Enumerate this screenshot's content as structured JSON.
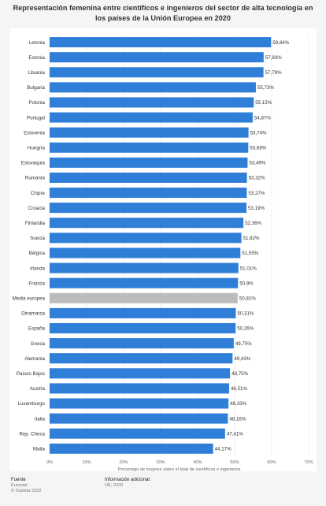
{
  "chart_data": {
    "type": "bar",
    "orientation": "horizontal",
    "title": "Representación femenina entre científicos e ingenieros del sector de alta tecnología en los países de la Unión Europea en 2020",
    "xlabel": "Porcentaje de mujeres sobre el total de científicos e ingenieros",
    "ylabel": "",
    "xlim": [
      0,
      70
    ],
    "ticks": [
      "0%",
      "10%",
      "20%",
      "30%",
      "40%",
      "50%",
      "60%",
      "70%"
    ],
    "grid": true,
    "legend": "none",
    "categories": [
      "Letonia",
      "Estonia",
      "Lituania",
      "Bulgaria",
      "Polonia",
      "Portugal",
      "Eslovenia",
      "Hungría",
      "Eslovaquia",
      "Rumanía",
      "Chipre",
      "Croacia",
      "Finlandia",
      "Suecia",
      "Bélgica",
      "Irlanda",
      "Francia",
      "Media europea",
      "Dinamarca",
      "España",
      "Grecia",
      "Alemania",
      "Países Bajos",
      "Austria",
      "Luxemburgo",
      "Italia",
      "Rep. Checa",
      "Malta"
    ],
    "values": [
      59.84,
      57.83,
      57.79,
      55.73,
      55.15,
      54.87,
      53.74,
      53.68,
      53.49,
      53.32,
      53.27,
      53.19,
      52.36,
      51.82,
      51.55,
      51.01,
      50.9,
      50.81,
      50.31,
      50.26,
      49.75,
      49.43,
      48.75,
      48.51,
      48.33,
      48.16,
      47.41,
      44.17
    ],
    "labels": [
      "59,84%",
      "57,83%",
      "57,79%",
      "55,73%",
      "55,15%",
      "54,87%",
      "53,74%",
      "53,68%",
      "53,49%",
      "53,32%",
      "53,27%",
      "53,19%",
      "52,36%",
      "51,82%",
      "51,55%",
      "51,01%",
      "50,9%",
      "50,81%",
      "50,31%",
      "50,26%",
      "49,75%",
      "49,43%",
      "48,75%",
      "48,51%",
      "48,33%",
      "48,16%",
      "47,41%",
      "44,17%"
    ],
    "highlight_index": 17,
    "colors": {
      "bar": "#2f7ed8",
      "highlight": "#bcbcbc",
      "grid": "#e6e6e6"
    }
  },
  "footer": {
    "source_heading": "Fuente",
    "source": "Eurostat",
    "copyright": "© Statista 2022",
    "info_heading": "Información adicional:",
    "info": "UE; 2020"
  }
}
